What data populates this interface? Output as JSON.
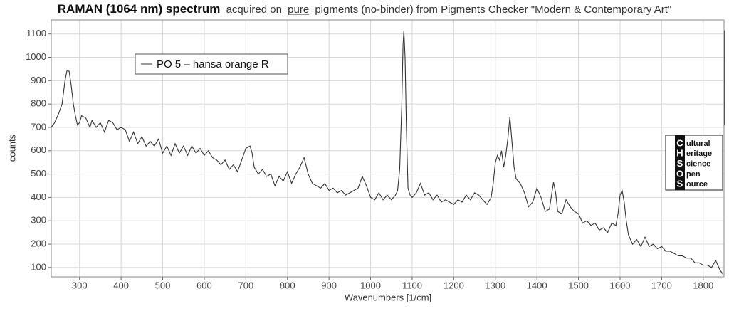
{
  "chart_data": {
    "type": "line",
    "title": "RAMAN (1064 nm) spectrum",
    "subtitle_parts": [
      "acquired on",
      "pure",
      "pigments (no-binder) from Pigments Checker \"Modern & Contemporary Art\""
    ],
    "x_label": "Wavenumbers [1/cm]",
    "y_label": "counts",
    "xlim": [
      232,
      1850
    ],
    "ylim": [
      60,
      1160
    ],
    "xticks": [
      300,
      400,
      500,
      600,
      700,
      800,
      900,
      1000,
      1100,
      1200,
      1300,
      1400,
      1500,
      1600,
      1700,
      1800
    ],
    "yticks": [
      100,
      200,
      300,
      400,
      500,
      600,
      700,
      800,
      900,
      1000,
      1100
    ],
    "grid": true,
    "legend": "upper left",
    "logo_letters": [
      "C",
      "H",
      "S",
      "O",
      "S"
    ],
    "logo_words": [
      "ultural",
      "eritage",
      "cience",
      "pen",
      "ource"
    ],
    "x": [
      232,
      240,
      250,
      258,
      265,
      270,
      275,
      280,
      285,
      290,
      295,
      300,
      305,
      315,
      325,
      330,
      340,
      350,
      360,
      370,
      380,
      390,
      400,
      410,
      420,
      430,
      440,
      450,
      460,
      470,
      480,
      490,
      500,
      510,
      520,
      530,
      540,
      550,
      560,
      570,
      580,
      590,
      600,
      610,
      620,
      630,
      640,
      650,
      660,
      670,
      680,
      690,
      700,
      710,
      715,
      720,
      730,
      740,
      750,
      760,
      770,
      780,
      790,
      800,
      810,
      820,
      830,
      840,
      850,
      860,
      870,
      880,
      890,
      900,
      910,
      920,
      930,
      940,
      950,
      960,
      970,
      980,
      990,
      1000,
      1010,
      1020,
      1030,
      1040,
      1050,
      1060,
      1065,
      1070,
      1075,
      1078,
      1080,
      1083,
      1086,
      1090,
      1095,
      1100,
      1110,
      1120,
      1130,
      1140,
      1150,
      1160,
      1170,
      1180,
      1190,
      1200,
      1210,
      1220,
      1230,
      1240,
      1250,
      1260,
      1270,
      1280,
      1290,
      1295,
      1300,
      1305,
      1310,
      1315,
      1320,
      1325,
      1330,
      1335,
      1340,
      1345,
      1350,
      1360,
      1370,
      1380,
      1390,
      1400,
      1410,
      1420,
      1430,
      1440,
      1445,
      1450,
      1460,
      1470,
      1480,
      1490,
      1500,
      1510,
      1520,
      1530,
      1540,
      1550,
      1560,
      1570,
      1580,
      1590,
      1595,
      1600,
      1605,
      1610,
      1615,
      1620,
      1630,
      1640,
      1650,
      1660,
      1670,
      1680,
      1690,
      1700,
      1710,
      1720,
      1730,
      1740,
      1750,
      1760,
      1770,
      1780,
      1790,
      1800,
      1810,
      1820,
      1830,
      1840,
      1848
    ],
    "series": [
      {
        "name": "PO 5 – hansa orange R",
        "color": "#333333",
        "values": [
          700,
          720,
          760,
          800,
          900,
          945,
          940,
          880,
          800,
          750,
          710,
          720,
          750,
          740,
          700,
          730,
          700,
          720,
          680,
          730,
          720,
          690,
          700,
          690,
          640,
          680,
          630,
          660,
          620,
          640,
          620,
          650,
          590,
          620,
          580,
          630,
          590,
          620,
          580,
          620,
          590,
          610,
          580,
          600,
          570,
          560,
          540,
          560,
          520,
          540,
          510,
          560,
          610,
          620,
          590,
          530,
          500,
          520,
          490,
          500,
          450,
          490,
          470,
          510,
          460,
          500,
          530,
          570,
          500,
          460,
          450,
          440,
          460,
          430,
          440,
          420,
          430,
          410,
          420,
          430,
          440,
          490,
          450,
          400,
          390,
          420,
          390,
          410,
          390,
          410,
          430,
          520,
          800,
          1050,
          1115,
          1000,
          700,
          440,
          410,
          400,
          420,
          460,
          410,
          420,
          390,
          410,
          380,
          390,
          380,
          370,
          390,
          380,
          410,
          390,
          420,
          410,
          390,
          370,
          400,
          460,
          550,
          580,
          560,
          600,
          530,
          580,
          650,
          745,
          640,
          530,
          480,
          460,
          420,
          360,
          380,
          440,
          400,
          340,
          350,
          465,
          420,
          340,
          330,
          390,
          360,
          340,
          330,
          290,
          300,
          280,
          290,
          260,
          270,
          250,
          290,
          280,
          330,
          410,
          430,
          380,
          300,
          240,
          200,
          220,
          190,
          230,
          190,
          200,
          180,
          190,
          170,
          170,
          160,
          150,
          150,
          140,
          140,
          120,
          120,
          110,
          110,
          100,
          130,
          90,
          70
        ]
      }
    ]
  }
}
